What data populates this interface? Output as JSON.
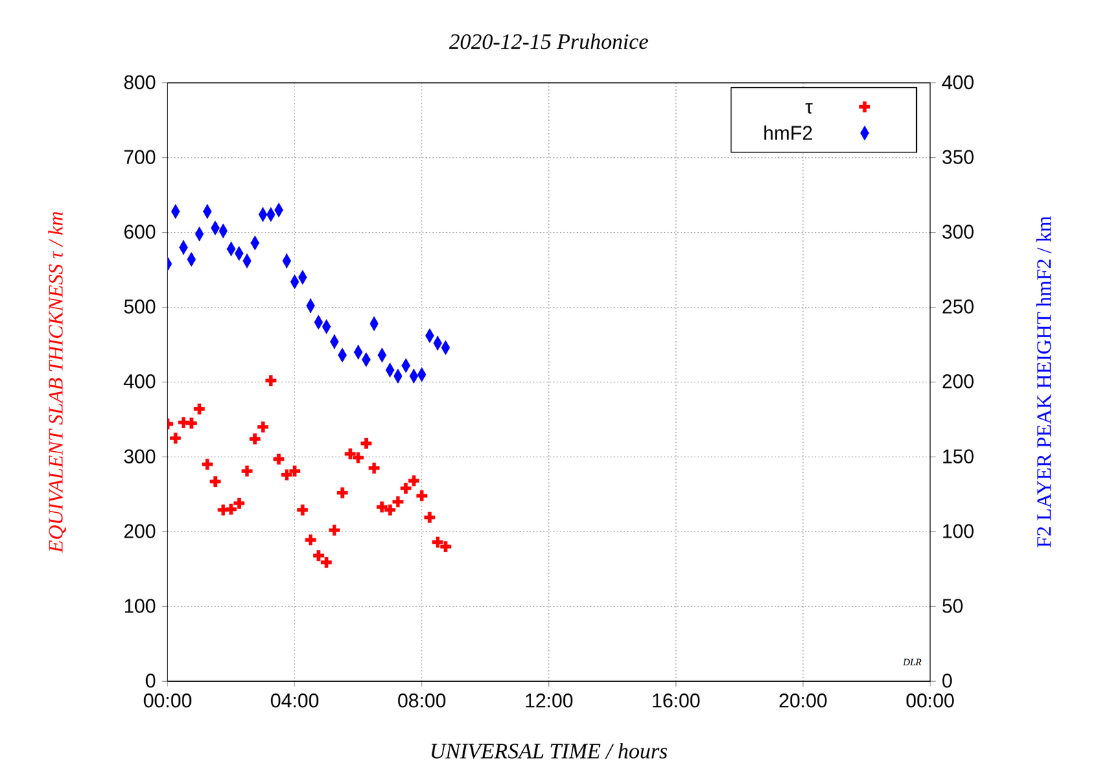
{
  "chart_data": {
    "type": "scatter",
    "title": "2020-12-15 Pruhonice",
    "x_label": "UNIVERSAL TIME / hours",
    "y_label": "EQUIVALENT SLAB THICKNESS  τ / km",
    "y2_label": "F2 LAYER PEAK HEIGHT  hmF2 / km",
    "x": [
      0,
      0.25,
      0.5,
      0.75,
      1,
      1.25,
      1.5,
      1.75,
      2,
      2.25,
      2.5,
      2.75,
      3,
      3.25,
      3.5,
      3.75,
      4,
      4.25,
      4.5,
      4.75,
      5,
      5.25,
      5.5,
      5.75,
      6,
      6.25,
      6.5,
      6.75,
      7,
      7.25,
      7.5,
      7.75,
      8,
      8.25,
      8.5,
      8.75
    ],
    "series": [
      {
        "name": "τ",
        "color": "#ff0000",
        "marker": "cross",
        "values": [
          344,
          325,
          346,
          345,
          364,
          290,
          267,
          229,
          230,
          238,
          281,
          324,
          340,
          402,
          297,
          276,
          281,
          229,
          189,
          168,
          159,
          202,
          252,
          304,
          299,
          318,
          285,
          233,
          229,
          240,
          258,
          268,
          248,
          219,
          186,
          180
        ]
      },
      {
        "name": "hmF2",
        "color": "#0000ff",
        "marker": "diamond",
        "axis": "y2",
        "values": [
          279,
          314,
          290,
          282,
          299,
          314,
          303,
          301,
          289,
          286,
          281,
          293,
          312,
          312,
          315,
          281,
          267,
          270,
          251,
          240,
          237,
          227,
          218,
          null,
          220,
          215,
          239,
          218,
          208,
          204,
          211,
          204,
          205,
          231,
          226,
          223
        ]
      }
    ],
    "xlim": [
      0,
      24
    ],
    "xticks": [
      {
        "value": 0,
        "label": "00:00"
      },
      {
        "value": 4,
        "label": "04:00"
      },
      {
        "value": 8,
        "label": "08:00"
      },
      {
        "value": 12,
        "label": "12:00"
      },
      {
        "value": 16,
        "label": "16:00"
      },
      {
        "value": 20,
        "label": "20:00"
      },
      {
        "value": 24,
        "label": "00:00"
      }
    ],
    "ylim": [
      0,
      800
    ],
    "yticks": [
      0,
      100,
      200,
      300,
      400,
      500,
      600,
      700,
      800
    ],
    "y2lim": [
      0,
      400
    ],
    "y2ticks": [
      0,
      50,
      100,
      150,
      200,
      250,
      300,
      350,
      400
    ],
    "grid": true,
    "legend": "top-right",
    "annotations": [
      "DLR"
    ]
  }
}
